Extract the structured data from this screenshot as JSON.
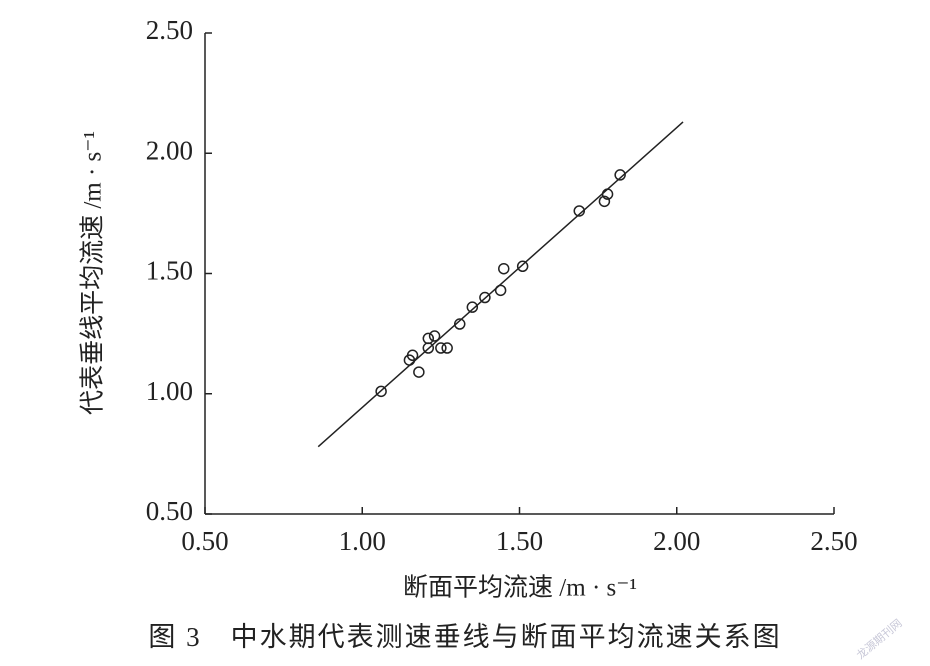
{
  "chart_data": {
    "type": "scatter",
    "title": "图 3　中水期代表测速垂线与断面平均流速关系图",
    "xlabel": "断面平均流速 /m · s⁻¹",
    "ylabel": "代表垂线平均流速 /m · s⁻¹",
    "watermark": "龙源期刊网",
    "x": [
      1.06,
      1.15,
      1.16,
      1.18,
      1.21,
      1.21,
      1.23,
      1.25,
      1.27,
      1.31,
      1.35,
      1.39,
      1.44,
      1.45,
      1.51,
      1.69,
      1.77,
      1.78,
      1.82
    ],
    "values": [
      1.01,
      1.14,
      1.16,
      1.09,
      1.23,
      1.19,
      1.24,
      1.19,
      1.19,
      1.29,
      1.36,
      1.4,
      1.43,
      1.52,
      1.53,
      1.76,
      1.8,
      1.83,
      1.91
    ],
    "fit_line": {
      "x": [
        0.86,
        2.02
      ],
      "y": [
        0.78,
        2.13
      ]
    },
    "color": "#222222",
    "xlim": [
      0.5,
      2.5
    ],
    "ylim": [
      0.5,
      2.5
    ],
    "xticks": [
      {
        "value": 0.5,
        "label": "0.50"
      },
      {
        "value": 1,
        "label": "1.00"
      },
      {
        "value": 1.5,
        "label": "1.50"
      },
      {
        "value": 2,
        "label": "2.00"
      },
      {
        "value": 2.5,
        "label": "2.50"
      }
    ],
    "yticks": [
      {
        "value": 0.5,
        "label": "0.50"
      },
      {
        "value": 1,
        "label": "1.00"
      },
      {
        "value": 1.5,
        "label": "1.50"
      },
      {
        "value": 2,
        "label": "2.00"
      },
      {
        "value": 2.5,
        "label": "2.50"
      }
    ]
  }
}
